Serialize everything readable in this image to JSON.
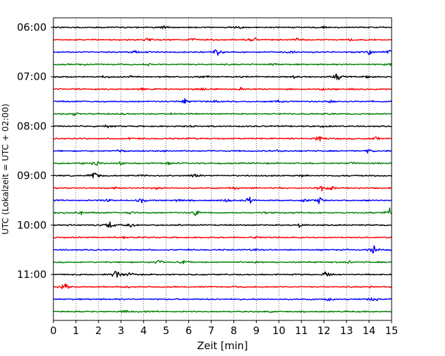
{
  "chart_data": {
    "type": "line",
    "title": "",
    "xlabel": "Zeit  [min]",
    "ylabel": "UTC (Lokalzeit = UTC + 02:00)",
    "xlim": [
      0,
      15
    ],
    "x_ticks": [
      0,
      1,
      2,
      3,
      4,
      5,
      6,
      7,
      8,
      9,
      10,
      11,
      12,
      13,
      14,
      15
    ],
    "y_tick_labels": [
      "06:00",
      "07:00",
      "08:00",
      "09:00",
      "10:00",
      "11:00"
    ],
    "trace_interval_minutes": 15,
    "grid": "vertical dotted",
    "trace_colors": [
      "#000000",
      "#ff0000",
      "#0000ff",
      "#008000"
    ],
    "series": [
      {
        "start": "06:00",
        "bursts": [
          [
            4.9,
            0.8
          ],
          [
            8.2,
            0.6
          ],
          [
            12.0,
            0.6
          ]
        ]
      },
      {
        "start": "06:15",
        "bursts": [
          [
            4.2,
            1.0
          ],
          [
            6.2,
            0.8
          ],
          [
            8.9,
            2.0
          ],
          [
            10.8,
            1.0
          ],
          [
            13.2,
            0.8
          ]
        ]
      },
      {
        "start": "06:30",
        "bursts": [
          [
            3.6,
            1.2
          ],
          [
            7.3,
            2.2
          ],
          [
            10.6,
            0.8
          ],
          [
            14.0,
            1.2
          ],
          [
            14.9,
            1.2
          ]
        ]
      },
      {
        "start": "06:45",
        "bursts": [
          [
            1.4,
            0.8
          ],
          [
            4.2,
            0.6
          ],
          [
            9.8,
            0.6
          ],
          [
            15.0,
            1.6
          ]
        ]
      },
      {
        "start": "07:00",
        "bursts": [
          [
            2.3,
            0.8
          ],
          [
            3.4,
            0.8
          ],
          [
            6.6,
            1.0
          ],
          [
            10.7,
            0.8
          ],
          [
            12.6,
            2.0
          ],
          [
            13.9,
            0.8
          ]
        ]
      },
      {
        "start": "07:15",
        "bursts": [
          [
            3.9,
            0.8
          ],
          [
            6.6,
            0.8
          ],
          [
            8.3,
            0.8
          ],
          [
            11.9,
            0.8
          ],
          [
            13.2,
            0.8
          ]
        ]
      },
      {
        "start": "07:30",
        "bursts": [
          [
            5.8,
            1.8
          ],
          [
            7.2,
            1.0
          ],
          [
            10.0,
            0.6
          ],
          [
            12.3,
            0.6
          ]
        ]
      },
      {
        "start": "07:45",
        "bursts": [
          [
            0.9,
            1.0
          ],
          [
            3.0,
            0.6
          ],
          [
            5.3,
            0.6
          ],
          [
            12.2,
            0.6
          ]
        ]
      },
      {
        "start": "08:00",
        "bursts": [
          [
            2.4,
            0.6
          ],
          [
            6.1,
            0.6
          ],
          [
            12.0,
            0.6
          ]
        ]
      },
      {
        "start": "08:15",
        "bursts": [
          [
            3.4,
            0.6
          ],
          [
            6.1,
            0.6
          ],
          [
            11.8,
            2.0
          ],
          [
            14.3,
            1.0
          ]
        ]
      },
      {
        "start": "08:30",
        "bursts": [
          [
            2.9,
            0.8
          ],
          [
            5.0,
            0.8
          ],
          [
            9.9,
            0.6
          ],
          [
            14.0,
            1.0
          ]
        ]
      },
      {
        "start": "08:45",
        "bursts": [
          [
            1.3,
            1.0
          ],
          [
            1.9,
            1.4
          ],
          [
            3.0,
            1.0
          ],
          [
            5.1,
            0.8
          ],
          [
            13.3,
            0.8
          ]
        ]
      },
      {
        "start": "09:00",
        "bursts": [
          [
            1.8,
            2.5
          ],
          [
            3.9,
            0.8
          ],
          [
            6.3,
            0.8
          ],
          [
            11.0,
            0.6
          ]
        ]
      },
      {
        "start": "09:15",
        "bursts": [
          [
            2.8,
            0.8
          ],
          [
            4.6,
            0.6
          ],
          [
            8.1,
            0.6
          ],
          [
            11.9,
            1.6
          ],
          [
            12.3,
            1.0
          ]
        ]
      },
      {
        "start": "09:30",
        "bursts": [
          [
            2.4,
            0.8
          ],
          [
            3.9,
            1.8
          ],
          [
            5.5,
            0.8
          ],
          [
            7.6,
            1.0
          ],
          [
            8.7,
            1.8
          ],
          [
            11.2,
            1.4
          ],
          [
            11.8,
            1.8
          ]
        ]
      },
      {
        "start": "09:45",
        "bursts": [
          [
            1.2,
            1.2
          ],
          [
            3.4,
            0.8
          ],
          [
            6.3,
            1.8
          ],
          [
            9.5,
            0.8
          ],
          [
            14.9,
            2.4
          ]
        ]
      },
      {
        "start": "10:00",
        "bursts": [
          [
            2.5,
            2.2
          ],
          [
            3.4,
            1.4
          ],
          [
            5.4,
            0.6
          ],
          [
            10.9,
            1.2
          ]
        ]
      },
      {
        "start": "10:15",
        "bursts": [
          [
            3.1,
            0.6
          ],
          [
            9.0,
            0.6
          ]
        ]
      },
      {
        "start": "10:30",
        "bursts": [
          [
            9.0,
            0.6
          ],
          [
            14.2,
            2.4
          ]
        ]
      },
      {
        "start": "10:45",
        "bursts": [
          [
            4.7,
            1.2
          ],
          [
            5.8,
            0.8
          ],
          [
            9.0,
            0.6
          ],
          [
            13.1,
            0.6
          ]
        ]
      },
      {
        "start": "11:00",
        "bursts": [
          [
            2.8,
            2.8
          ],
          [
            3.4,
            1.6
          ],
          [
            12.1,
            1.8
          ]
        ]
      },
      {
        "start": "11:15",
        "bursts": [
          [
            0.5,
            2.4
          ],
          [
            3.2,
            0.6
          ],
          [
            14.1,
            0.6
          ]
        ]
      },
      {
        "start": "11:30",
        "bursts": [
          [
            12.2,
            0.8
          ],
          [
            14.2,
            1.2
          ]
        ]
      },
      {
        "start": "11:45",
        "bursts": [
          [
            3.2,
            0.6
          ],
          [
            9.6,
            0.6
          ]
        ]
      }
    ]
  }
}
